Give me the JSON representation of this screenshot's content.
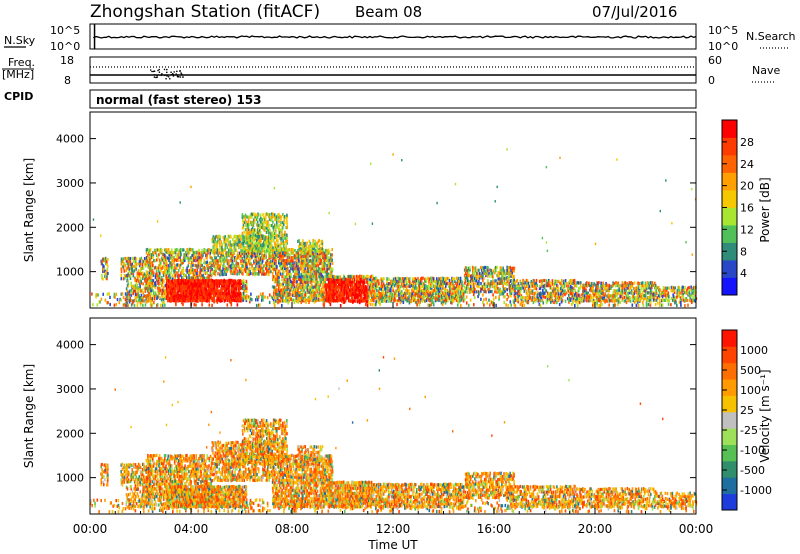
{
  "header": {
    "station": "Zhongshan Station (fitACF)",
    "beam": "Beam 08",
    "date": "07/Jul/2016",
    "cpid_label": "CPID",
    "cpid_value": "normal (fast stereo) 153"
  },
  "chart_data": [
    {
      "type": "line",
      "panel": "sky-noise",
      "series": [
        {
          "name": "N.Sky",
          "style": "solid",
          "values_description": "near 10^2 throughout"
        },
        {
          "name": "N.Search",
          "style": "dotted"
        }
      ],
      "left_label": "N.Sky",
      "right_label": "N.Search",
      "left_ticks": [
        "10^5",
        "10^0"
      ],
      "right_ticks": [
        "10^5",
        "10^0"
      ]
    },
    {
      "type": "line",
      "panel": "frequency-nave",
      "series": [
        {
          "name": "Freq.",
          "style": "solid",
          "value": 10
        },
        {
          "name": "Nave",
          "style": "dotted",
          "value": 33
        }
      ],
      "left_label_top": "Freq.",
      "left_label_bottom": "[MHz]",
      "right_label": "Nave",
      "left_ticks": [
        "18",
        "8"
      ],
      "right_ticks": [
        "60",
        "0"
      ]
    },
    {
      "type": "heatmap",
      "panel": "power",
      "ylabel": "Slant Range [km]",
      "ylim": [
        180,
        4600
      ],
      "yticks": [
        "1000",
        "2000",
        "3000",
        "4000"
      ],
      "xlim": [
        "00:00",
        "24:00"
      ],
      "colorbar_label": "Power [dB]",
      "colorbar_ticks": [
        "4",
        "8",
        "12",
        "16",
        "20",
        "24",
        "28"
      ],
      "colorbar_colors": [
        "#1414ff",
        "#2848c8",
        "#2e8c78",
        "#52c058",
        "#a8e632",
        "#f5c800",
        "#ffa000",
        "#ff6400",
        "#ff3c00",
        "#ff0000"
      ]
    },
    {
      "type": "heatmap",
      "panel": "velocity",
      "ylabel": "Slant Range [km]",
      "ylim": [
        180,
        4600
      ],
      "yticks": [
        "1000",
        "2000",
        "3000",
        "4000"
      ],
      "xlim": [
        "00:00",
        "24:00"
      ],
      "colorbar_label": "Velocity [m s⁻¹]",
      "colorbar_ticks": [
        "1000",
        "500",
        "100",
        "25",
        "-25",
        "-100",
        "-500",
        "-1000"
      ],
      "colorbar_colors": [
        "#1e3cdc",
        "#1f6ea0",
        "#2f8e6c",
        "#56c054",
        "#9fe05a",
        "#c0c0c0",
        "#f6c200",
        "#ff9a00",
        "#ff6e00",
        "#ff4400",
        "#ff1400"
      ]
    }
  ],
  "x_axis": {
    "ticks": [
      "00:00",
      "04:00",
      "08:00",
      "12:00",
      "16:00",
      "20:00",
      "00:00"
    ],
    "label": "Time UT"
  }
}
